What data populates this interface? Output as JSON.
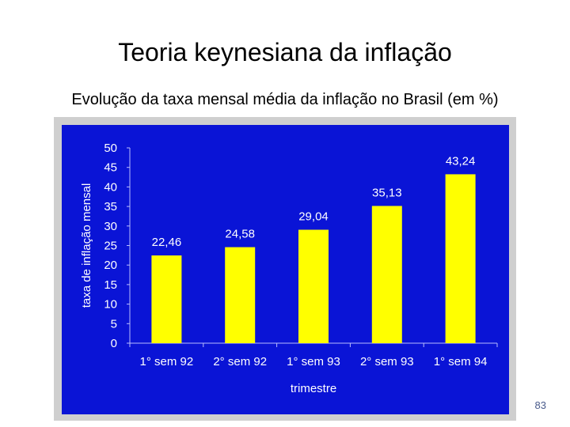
{
  "slide": {
    "title": "Teoria keynesiana da inflação",
    "subtitle": "Evolução da taxa mensal média da inflação no Brasil (em %)",
    "page_number": "83"
  },
  "chart_data": {
    "type": "bar",
    "categories": [
      "1° sem 92",
      "2° sem 92",
      "1° sem 93",
      "2° sem 93",
      "1° sem 94"
    ],
    "values": [
      22.46,
      24.58,
      29.04,
      35.13,
      43.24
    ],
    "value_labels": [
      "22,46",
      "24,58",
      "29,04",
      "35,13",
      "43,24"
    ],
    "xlabel": "trimestre",
    "ylabel": "taxa de inflação mensal",
    "ylim": [
      0,
      50
    ],
    "yticks": [
      0,
      5,
      10,
      15,
      20,
      25,
      30,
      35,
      40,
      45,
      50
    ],
    "grid": false,
    "legend": "none",
    "colors": {
      "background": "#0a14d6",
      "bar": "#ffff00",
      "text": "#ffffff",
      "frame": "#cfcfcf"
    }
  }
}
